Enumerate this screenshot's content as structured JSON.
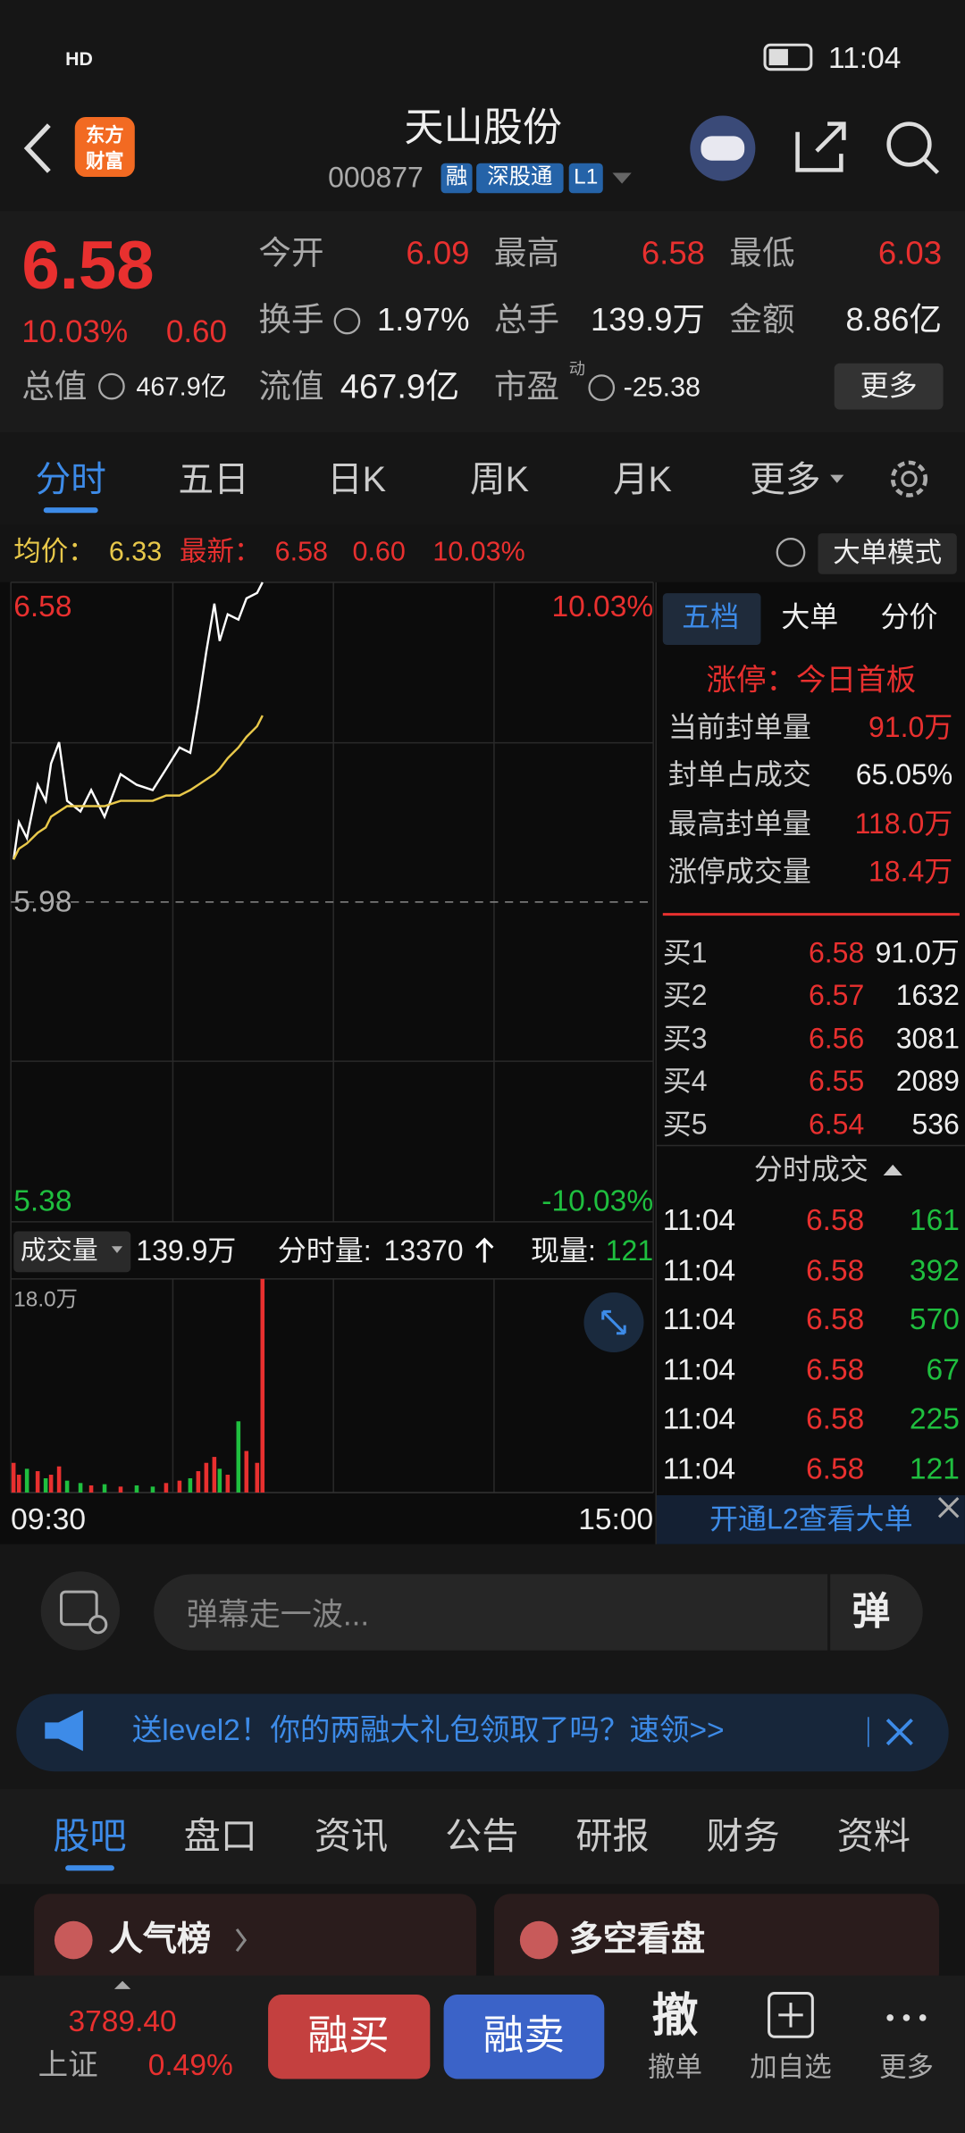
{
  "status_bar": {
    "network": "HD",
    "time": "11:04"
  },
  "header": {
    "logo": [
      "东方",
      "财富"
    ],
    "name": "天山股份",
    "code": "000877",
    "tags": [
      "融",
      "深股通",
      "L1"
    ]
  },
  "quote": {
    "price": "6.58",
    "change_pct": "10.03%",
    "change": "0.60",
    "open": {
      "label": "今开",
      "value": "6.09"
    },
    "high": {
      "label": "最高",
      "value": "6.58"
    },
    "low": {
      "label": "最低",
      "value": "6.03"
    },
    "turnover": {
      "label": "换手",
      "value": "1.97%"
    },
    "volume": {
      "label": "总手",
      "value": "139.9万"
    },
    "amount": {
      "label": "金额",
      "value": "8.86亿"
    },
    "total_value": {
      "label": "总值",
      "value": "467.9亿"
    },
    "float_value": {
      "label": "流值",
      "value": "467.9亿"
    },
    "pe": {
      "label": "市盈",
      "tag": "动",
      "value": "-25.38"
    },
    "more": "更多"
  },
  "tabs": [
    "分时",
    "五日",
    "日K",
    "周K",
    "月K",
    "更多"
  ],
  "info_bar": {
    "avg_label": "均价：",
    "avg": "6.33",
    "latest_label": "最新：",
    "latest": "6.58",
    "change": "0.60",
    "change_pct": "10.03%",
    "mode": "大单模式"
  },
  "chart_data": [
    {
      "type": "line",
      "x": [
        "09:31",
        "09:33",
        "09:36",
        "09:40",
        "09:43",
        "09:45",
        "09:48",
        "09:51",
        "09:56",
        "10:00",
        "10:05",
        "10:11",
        "10:17",
        "10:23",
        "10:28",
        "10:33",
        "10:37",
        "10:40",
        "10:43",
        "10:46",
        "10:48",
        "10:51",
        "10:55",
        "10:58",
        "11:02",
        "11:04"
      ],
      "series": [
        {
          "color": "#ffffff",
          "values": [
            6.06,
            6.13,
            6.1,
            6.2,
            6.17,
            6.24,
            6.28,
            6.17,
            6.15,
            6.19,
            6.14,
            6.22,
            6.2,
            6.19,
            6.23,
            6.27,
            6.26,
            6.35,
            6.45,
            6.54,
            6.47,
            6.52,
            6.51,
            6.55,
            6.56,
            6.58
          ]
        },
        {
          "color": "#e8c84a",
          "values": [
            6.06,
            6.08,
            6.09,
            6.11,
            6.12,
            6.14,
            6.15,
            6.16,
            6.16,
            6.16,
            6.16,
            6.17,
            6.17,
            6.17,
            6.18,
            6.18,
            6.19,
            6.2,
            6.21,
            6.22,
            6.23,
            6.25,
            6.27,
            6.29,
            6.31,
            6.33
          ]
        }
      ],
      "ylim": [
        5.38,
        6.58
      ],
      "yticks": [
        6.58,
        5.98,
        5.38
      ],
      "pct_labels": [
        "10.03%",
        "-10.03%"
      ],
      "x_labels": [
        "09:30",
        "15:00"
      ]
    },
    {
      "type": "bar",
      "x": [
        "09:31",
        "09:33",
        "09:36",
        "09:40",
        "09:43",
        "09:45",
        "09:48",
        "09:51",
        "09:56",
        "10:00",
        "10:05",
        "10:11",
        "10:17",
        "10:23",
        "10:28",
        "10:33",
        "10:37",
        "10:40",
        "10:43",
        "10:46",
        "10:48",
        "10:51",
        "10:55",
        "10:58",
        "11:02",
        "11:04"
      ],
      "values": [
        2.5,
        1.5,
        2,
        1.8,
        1.2,
        1.5,
        2.2,
        1,
        0.8,
        0.6,
        0.7,
        0.5,
        0.6,
        0.5,
        0.8,
        1,
        1.2,
        1.8,
        2.5,
        3,
        2,
        1.5,
        6,
        3.5,
        2.5,
        18
      ],
      "colors": {
        "up": "#e8302f",
        "down": "#1fbf3f"
      },
      "ylim": [
        0,
        18
      ],
      "yticks": [
        {
          "value": 18,
          "label": "18.0万"
        }
      ]
    }
  ],
  "volume_bar": {
    "label": "成交量",
    "total": "139.9万",
    "minute_label": "分时量:",
    "minute_value": "13370",
    "now_label": "现量:",
    "now_value": "121"
  },
  "order_book": {
    "tabs": [
      "五档",
      "大单",
      "分价"
    ],
    "limit_status": "涨停：今日首板",
    "stats": [
      {
        "label": "当前封单量",
        "value": "91.0万"
      },
      {
        "label": "封单占成交",
        "value": "65.05%"
      },
      {
        "label": "最高封单量",
        "value": "118.0万"
      },
      {
        "label": "涨停成交量",
        "value": "18.4万"
      }
    ],
    "bids": [
      {
        "label": "买1",
        "price": "6.58",
        "volume": "91.0万"
      },
      {
        "label": "买2",
        "price": "6.57",
        "volume": "1632"
      },
      {
        "label": "买3",
        "price": "6.56",
        "volume": "3081"
      },
      {
        "label": "买4",
        "price": "6.55",
        "volume": "2089"
      },
      {
        "label": "买5",
        "price": "6.54",
        "volume": "536"
      }
    ],
    "trades_title": "分时成交",
    "trades": [
      {
        "time": "11:04",
        "price": "6.58",
        "volume": "161"
      },
      {
        "time": "11:04",
        "price": "6.58",
        "volume": "392"
      },
      {
        "time": "11:04",
        "price": "6.58",
        "volume": "570"
      },
      {
        "time": "11:04",
        "price": "6.58",
        "volume": "67"
      },
      {
        "time": "11:04",
        "price": "6.58",
        "volume": "225"
      },
      {
        "time": "11:04",
        "price": "6.58",
        "volume": "121"
      }
    ],
    "l2_link": "开通L2查看大单"
  },
  "comment": {
    "placeholder": "弹幕走一波...",
    "send": "弹"
  },
  "banner": {
    "text": "送level2！你的两融大礼包领取了吗？速领>>"
  },
  "bottom_tabs": [
    "股吧",
    "盘口",
    "资讯",
    "公告",
    "研报",
    "财务",
    "资料"
  ],
  "cards": [
    "人气榜",
    "多空看盘"
  ],
  "footer": {
    "index_value": "3789.40",
    "index_name": "上证",
    "index_pct": "0.49%",
    "buy": "融买",
    "sell": "融卖",
    "cancel_icon": "撤",
    "cancel": "撤单",
    "watch": "加自选",
    "more": "更多"
  }
}
